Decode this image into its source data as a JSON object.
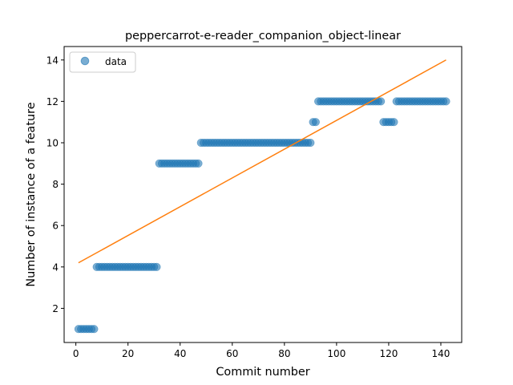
{
  "chart_data": {
    "type": "scatter",
    "title": "peppercarrot-e-reader_companion_object-linear",
    "xlabel": "Commit number",
    "ylabel": "Number of instance of a feature",
    "xlim": [
      -4.5,
      148
    ],
    "ylim": [
      0.35,
      14.65
    ],
    "xticks": [
      0,
      20,
      40,
      60,
      80,
      100,
      120,
      140
    ],
    "yticks": [
      2,
      4,
      6,
      8,
      10,
      12,
      14
    ],
    "grid": false,
    "legend": {
      "position": "top-left",
      "entries": [
        "data"
      ]
    },
    "series": [
      {
        "name": "data",
        "kind": "points",
        "color": "#1f77b4",
        "segments": [
          {
            "from": 1,
            "to": 7,
            "y": 1
          },
          {
            "from": 8,
            "to": 31,
            "y": 4
          },
          {
            "from": 32,
            "to": 47,
            "y": 9
          },
          {
            "from": 48,
            "to": 90,
            "y": 10
          },
          {
            "from": 91,
            "to": 92,
            "y": 11
          },
          {
            "from": 93,
            "to": 117,
            "y": 12
          },
          {
            "from": 118,
            "to": 122,
            "y": 11
          },
          {
            "from": 123,
            "to": 142,
            "y": 12
          }
        ]
      },
      {
        "kind": "line",
        "color": "#ff7f0e",
        "x": [
          1,
          142
        ],
        "y": [
          4.2,
          14.0
        ]
      }
    ]
  }
}
